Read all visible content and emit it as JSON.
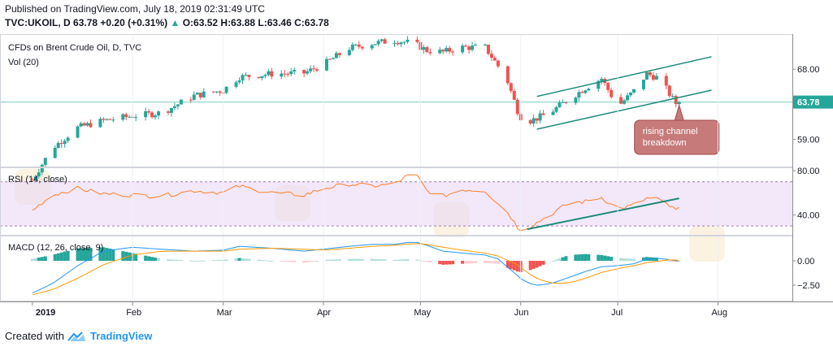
{
  "header": {
    "published": "Published on TradingView.com, July 18, 2019 02:31:49 UTC",
    "symbol": "TVC:UKOIL, D",
    "last": "63.78",
    "change": "+0.20 (+0.31%)",
    "ohlc": "O:63.52 H:63.88 L:63.46 C:63.78"
  },
  "footer": {
    "created_with": "Created with",
    "brand": "TradingView"
  },
  "colors": {
    "up": "#26a69a",
    "down": "#ef5350",
    "rsi": "#ff7f27",
    "macd": "#2196f3",
    "signal": "#ff9800",
    "annotation_fill": "#c77a7a",
    "trendline": "#1b8a7a"
  },
  "chart_data": [
    {
      "type": "candlestick",
      "panel": "price",
      "title": "CFDs on Brent Crude Oil, D, TVC",
      "subtitle": "Vol (20)",
      "y_ticks": [
        68.0,
        63.78,
        59.0
      ],
      "y_tick_labels": [
        "68.00",
        "63.78",
        "59.00"
      ],
      "last_price_label": "63.78",
      "ylim": [
        55.5,
        72.5
      ],
      "x_tick_labels": [
        "2019",
        "Feb",
        "Mar",
        "Apr",
        "May",
        "Jun",
        "Jul",
        "Aug"
      ],
      "x_tick_days": [
        0,
        31,
        59,
        90,
        120,
        151,
        181,
        212
      ],
      "series": [
        {
          "anchors_day": [
            0,
            6,
            14,
            22,
            31,
            40,
            50,
            59,
            64,
            74,
            84,
            90,
            98,
            105,
            112,
            118,
            122,
            127,
            133,
            140,
            144,
            146,
            150,
            152,
            156,
            160,
            166,
            171,
            176,
            181,
            186,
            190,
            194,
            197,
            199,
            200
          ],
          "anchors_close": [
            53.8,
            57.8,
            60.5,
            61.4,
            62.0,
            62.4,
            64.6,
            65.3,
            67.0,
            67.4,
            67.5,
            68.6,
            70.7,
            71.3,
            71.7,
            71.3,
            70.4,
            70.2,
            70.8,
            70.8,
            68.4,
            67.6,
            62.7,
            61.1,
            61.7,
            62.4,
            64.2,
            65.6,
            66.8,
            63.2,
            65.2,
            67.4,
            66.8,
            64.8,
            63.6,
            63.8
          ]
        }
      ],
      "annotation": "rising channel breakdown",
      "channel": {
        "lower": [
          [
            156,
            60.3
          ],
          [
            210,
            65.3
          ]
        ],
        "upper": [
          [
            156,
            64.5
          ],
          [
            210,
            69.6
          ]
        ]
      }
    },
    {
      "type": "line",
      "panel": "rsi",
      "title": "RSI (14, close)",
      "y_ticks": [
        80.0,
        40.0
      ],
      "y_tick_labels": [
        "80.00",
        "40.00"
      ],
      "ylim": [
        22,
        83
      ],
      "band": [
        30,
        70
      ],
      "anchors_day": [
        0,
        6,
        14,
        22,
        31,
        40,
        50,
        59,
        64,
        74,
        84,
        90,
        98,
        105,
        112,
        118,
        122,
        127,
        133,
        140,
        144,
        146,
        150,
        152,
        156,
        160,
        166,
        171,
        176,
        181,
        186,
        190,
        194,
        197,
        199,
        200
      ],
      "anchors_value": [
        44,
        58,
        64,
        59,
        58,
        57,
        62,
        60,
        66,
        60,
        58,
        64,
        68,
        66,
        68,
        79,
        62,
        57,
        63,
        62,
        50,
        47,
        29,
        26,
        33,
        40,
        51,
        52,
        56,
        45,
        49,
        55,
        54,
        48,
        44,
        46
      ],
      "trendline": [
        [
          153,
          27
        ],
        [
          200,
          55
        ]
      ]
    },
    {
      "type": "macd",
      "panel": "macd",
      "title": "MACD (12, 26, close, 9)",
      "y_ticks": [
        0.0,
        -2.5
      ],
      "y_tick_labels": [
        "0.00",
        "−2.50"
      ],
      "ylim": [
        -4.1,
        2.6
      ],
      "anchors_day": [
        0,
        6,
        14,
        22,
        31,
        40,
        50,
        59,
        64,
        74,
        84,
        90,
        98,
        105,
        112,
        118,
        122,
        127,
        133,
        140,
        144,
        146,
        150,
        152,
        156,
        160,
        166,
        171,
        176,
        181,
        186,
        190,
        194,
        197,
        199,
        200
      ],
      "macd_values": [
        -3.3,
        -2.4,
        -0.5,
        1.0,
        1.4,
        1.2,
        1.0,
        1.1,
        1.5,
        1.3,
        1.0,
        1.2,
        1.5,
        1.7,
        1.7,
        2.0,
        1.6,
        1.0,
        0.8,
        0.6,
        0.2,
        -0.4,
        -1.5,
        -2.2,
        -2.5,
        -2.4,
        -1.7,
        -1.1,
        -0.6,
        -0.5,
        -0.3,
        0.2,
        0.3,
        0.1,
        0.0,
        0.0
      ],
      "signal_values": [
        -3.5,
        -3.0,
        -1.8,
        -0.4,
        0.6,
        1.0,
        1.0,
        1.0,
        1.2,
        1.3,
        1.2,
        1.1,
        1.3,
        1.5,
        1.6,
        1.8,
        1.7,
        1.4,
        1.1,
        0.8,
        0.5,
        0.2,
        -0.4,
        -1.0,
        -1.8,
        -2.3,
        -2.3,
        -1.8,
        -1.2,
        -0.8,
        -0.5,
        -0.2,
        0.0,
        0.1,
        0.1,
        0.0
      ]
    }
  ]
}
